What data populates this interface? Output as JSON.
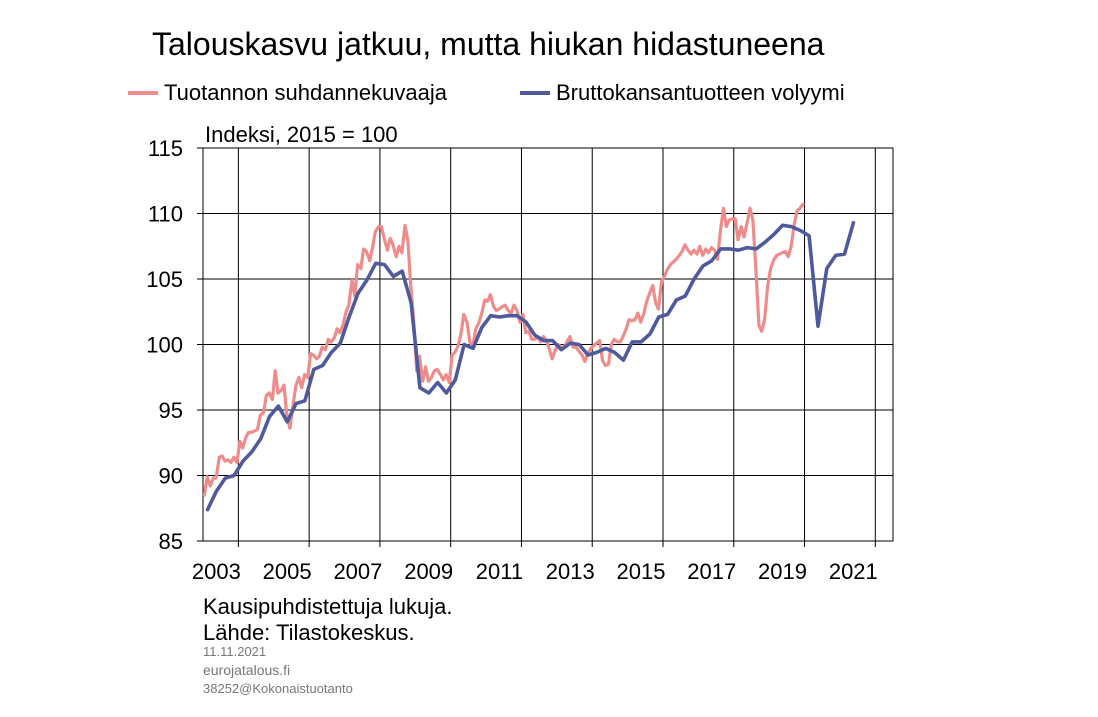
{
  "chart_data": {
    "type": "line",
    "title": "Talouskasvu jatkuu, mutta hiukan hidastuneena",
    "y_unit_label": "Indeksi, 2015 = 100",
    "xlim": [
      2002.0,
      2021.5
    ],
    "ylim": [
      85,
      115
    ],
    "y_ticks": [
      85,
      90,
      95,
      100,
      105,
      110,
      115
    ],
    "x_tick_labels": [
      "2003",
      "2005",
      "2007",
      "2009",
      "2011",
      "2013",
      "2015",
      "2017",
      "2019",
      "2021"
    ],
    "x_tick_positions": [
      2003,
      2005,
      2007,
      2009,
      2011,
      2013,
      2015,
      2017,
      2019,
      2021
    ],
    "grid": true,
    "legend_position": "top",
    "series": [
      {
        "name": "Tuotannon suhdannekuvaaja",
        "color": "#ee8c8c",
        "points": [
          [
            2002.04,
            88.5
          ],
          [
            2002.12,
            89.9
          ],
          [
            2002.21,
            89.2
          ],
          [
            2002.29,
            89.8
          ],
          [
            2002.37,
            89.8
          ],
          [
            2002.46,
            91.4
          ],
          [
            2002.54,
            91.5
          ],
          [
            2002.62,
            91.1
          ],
          [
            2002.71,
            91.2
          ],
          [
            2002.79,
            91.0
          ],
          [
            2002.87,
            91.4
          ],
          [
            2002.96,
            91.0
          ],
          [
            2003.04,
            92.6
          ],
          [
            2003.12,
            92.1
          ],
          [
            2003.21,
            92.9
          ],
          [
            2003.29,
            93.3
          ],
          [
            2003.37,
            93.3
          ],
          [
            2003.46,
            93.4
          ],
          [
            2003.54,
            93.5
          ],
          [
            2003.62,
            94.6
          ],
          [
            2003.71,
            94.8
          ],
          [
            2003.79,
            96.1
          ],
          [
            2003.87,
            96.3
          ],
          [
            2003.96,
            95.8
          ],
          [
            2004.04,
            98.0
          ],
          [
            2004.12,
            96.3
          ],
          [
            2004.21,
            96.5
          ],
          [
            2004.29,
            96.9
          ],
          [
            2004.37,
            94.5
          ],
          [
            2004.46,
            93.6
          ],
          [
            2004.54,
            95.3
          ],
          [
            2004.62,
            96.8
          ],
          [
            2004.71,
            97.5
          ],
          [
            2004.79,
            96.7
          ],
          [
            2004.87,
            97.7
          ],
          [
            2004.96,
            97.5
          ],
          [
            2005.04,
            99.3
          ],
          [
            2005.12,
            99.2
          ],
          [
            2005.21,
            98.9
          ],
          [
            2005.29,
            99.1
          ],
          [
            2005.37,
            99.8
          ],
          [
            2005.46,
            99.6
          ],
          [
            2005.54,
            100.4
          ],
          [
            2005.62,
            100.2
          ],
          [
            2005.71,
            100.5
          ],
          [
            2005.79,
            101.2
          ],
          [
            2005.87,
            100.9
          ],
          [
            2005.96,
            101.5
          ],
          [
            2006.04,
            102.5
          ],
          [
            2006.12,
            103.0
          ],
          [
            2006.21,
            104.9
          ],
          [
            2006.29,
            103.7
          ],
          [
            2006.37,
            106.1
          ],
          [
            2006.46,
            105.8
          ],
          [
            2006.54,
            107.3
          ],
          [
            2006.62,
            107.1
          ],
          [
            2006.71,
            106.4
          ],
          [
            2006.79,
            107.4
          ],
          [
            2006.87,
            108.6
          ],
          [
            2006.96,
            109.0
          ],
          [
            2007.04,
            109.0
          ],
          [
            2007.12,
            108.1
          ],
          [
            2007.21,
            107.2
          ],
          [
            2007.29,
            108.1
          ],
          [
            2007.37,
            107.6
          ],
          [
            2007.46,
            106.7
          ],
          [
            2007.54,
            107.5
          ],
          [
            2007.62,
            107.0
          ],
          [
            2007.71,
            109.1
          ],
          [
            2007.79,
            107.9
          ],
          [
            2007.87,
            104.5
          ],
          [
            2007.96,
            101.6
          ],
          [
            2008.04,
            98.0
          ],
          [
            2008.12,
            99.1
          ],
          [
            2008.21,
            97.2
          ],
          [
            2008.29,
            98.3
          ],
          [
            2008.37,
            97.2
          ],
          [
            2008.46,
            97.5
          ],
          [
            2008.54,
            98.0
          ],
          [
            2008.62,
            98.1
          ],
          [
            2008.71,
            97.7
          ],
          [
            2008.79,
            97.3
          ],
          [
            2008.87,
            97.7
          ],
          [
            2008.96,
            97.1
          ],
          [
            2009.04,
            99.2
          ],
          [
            2009.12,
            99.4
          ],
          [
            2009.21,
            99.9
          ],
          [
            2009.29,
            100.8
          ],
          [
            2009.37,
            102.3
          ],
          [
            2009.46,
            101.7
          ],
          [
            2009.54,
            100.2
          ],
          [
            2009.62,
            99.8
          ],
          [
            2009.71,
            101.2
          ],
          [
            2009.79,
            101.6
          ],
          [
            2009.87,
            102.3
          ],
          [
            2009.96,
            103.4
          ],
          [
            2010.04,
            103.3
          ],
          [
            2010.12,
            103.8
          ],
          [
            2010.21,
            102.9
          ],
          [
            2010.29,
            102.6
          ],
          [
            2010.37,
            102.7
          ],
          [
            2010.46,
            102.9
          ],
          [
            2010.54,
            103.0
          ],
          [
            2010.62,
            102.6
          ],
          [
            2010.71,
            102.4
          ],
          [
            2010.79,
            103.0
          ],
          [
            2010.87,
            102.6
          ],
          [
            2010.96,
            101.7
          ],
          [
            2011.04,
            102.3
          ],
          [
            2011.12,
            100.9
          ],
          [
            2011.21,
            101.0
          ],
          [
            2011.29,
            100.4
          ],
          [
            2011.37,
            100.4
          ],
          [
            2011.46,
            100.6
          ],
          [
            2011.54,
            100.2
          ],
          [
            2011.62,
            100.6
          ],
          [
            2011.71,
            100.3
          ],
          [
            2011.79,
            99.6
          ],
          [
            2011.87,
            98.9
          ],
          [
            2011.96,
            99.6
          ],
          [
            2012.04,
            100.0
          ],
          [
            2012.12,
            99.8
          ],
          [
            2012.21,
            99.8
          ],
          [
            2012.29,
            100.2
          ],
          [
            2012.37,
            100.6
          ],
          [
            2012.46,
            99.8
          ],
          [
            2012.54,
            99.8
          ],
          [
            2012.62,
            99.5
          ],
          [
            2012.71,
            99.2
          ],
          [
            2012.79,
            98.7
          ],
          [
            2012.87,
            99.3
          ],
          [
            2012.96,
            99.7
          ],
          [
            2013.04,
            99.9
          ],
          [
            2013.12,
            100.1
          ],
          [
            2013.21,
            100.3
          ],
          [
            2013.29,
            98.8
          ],
          [
            2013.37,
            98.4
          ],
          [
            2013.46,
            98.5
          ],
          [
            2013.54,
            100.0
          ],
          [
            2013.62,
            100.4
          ],
          [
            2013.71,
            100.2
          ],
          [
            2013.79,
            100.2
          ],
          [
            2013.87,
            100.6
          ],
          [
            2013.96,
            101.2
          ],
          [
            2014.04,
            101.9
          ],
          [
            2014.12,
            101.8
          ],
          [
            2014.21,
            101.9
          ],
          [
            2014.29,
            102.4
          ],
          [
            2014.37,
            101.7
          ],
          [
            2014.46,
            102.4
          ],
          [
            2014.54,
            103.3
          ],
          [
            2014.62,
            103.9
          ],
          [
            2014.71,
            104.5
          ],
          [
            2014.79,
            103.2
          ],
          [
            2014.87,
            102.7
          ],
          [
            2014.96,
            104.8
          ],
          [
            2015.04,
            105.2
          ],
          [
            2015.12,
            105.7
          ],
          [
            2015.21,
            106.1
          ],
          [
            2015.29,
            106.3
          ],
          [
            2015.37,
            106.5
          ],
          [
            2015.46,
            106.8
          ],
          [
            2015.54,
            107.1
          ],
          [
            2015.62,
            107.6
          ],
          [
            2015.71,
            107.2
          ],
          [
            2015.79,
            106.9
          ],
          [
            2015.87,
            107.2
          ],
          [
            2015.96,
            106.9
          ],
          [
            2016.04,
            107.5
          ],
          [
            2016.12,
            106.8
          ],
          [
            2016.21,
            107.3
          ],
          [
            2016.29,
            107.0
          ],
          [
            2016.37,
            107.4
          ],
          [
            2016.46,
            107.2
          ],
          [
            2016.54,
            106.5
          ],
          [
            2016.62,
            108.6
          ],
          [
            2016.71,
            110.4
          ],
          [
            2016.79,
            109.0
          ],
          [
            2016.87,
            109.5
          ],
          [
            2016.96,
            109.6
          ],
          [
            2017.04,
            109.6
          ],
          [
            2017.12,
            108.0
          ],
          [
            2017.21,
            109.0
          ],
          [
            2017.29,
            108.2
          ],
          [
            2017.37,
            109.2
          ],
          [
            2017.46,
            110.4
          ],
          [
            2017.54,
            109.5
          ],
          [
            2017.62,
            106.0
          ],
          [
            2017.71,
            101.5
          ],
          [
            2017.79,
            101.0
          ],
          [
            2017.87,
            101.9
          ],
          [
            2017.96,
            104.5
          ],
          [
            2018.04,
            105.8
          ],
          [
            2018.12,
            106.4
          ],
          [
            2018.21,
            106.8
          ],
          [
            2018.29,
            106.9
          ],
          [
            2018.37,
            107.0
          ],
          [
            2018.46,
            107.1
          ],
          [
            2018.54,
            106.7
          ],
          [
            2018.62,
            107.5
          ],
          [
            2018.71,
            109.2
          ],
          [
            2018.79,
            110.2
          ],
          [
            2018.87,
            110.4
          ],
          [
            2018.96,
            110.7
          ]
        ]
      },
      {
        "name": "Bruttokansantuotteen volyymi",
        "color": "#4f5a9c",
        "points": [
          [
            2002.13,
            87.4
          ],
          [
            2002.38,
            88.8
          ],
          [
            2002.63,
            89.8
          ],
          [
            2002.88,
            90.0
          ],
          [
            2003.13,
            91.1
          ],
          [
            2003.38,
            91.8
          ],
          [
            2003.63,
            92.8
          ],
          [
            2003.88,
            94.5
          ],
          [
            2004.13,
            95.3
          ],
          [
            2004.38,
            94.1
          ],
          [
            2004.63,
            95.5
          ],
          [
            2004.88,
            95.7
          ],
          [
            2005.13,
            98.1
          ],
          [
            2005.38,
            98.4
          ],
          [
            2005.63,
            99.4
          ],
          [
            2005.88,
            100.1
          ],
          [
            2006.13,
            102.1
          ],
          [
            2006.38,
            103.9
          ],
          [
            2006.63,
            104.9
          ],
          [
            2006.88,
            106.2
          ],
          [
            2007.13,
            106.1
          ],
          [
            2007.38,
            105.2
          ],
          [
            2007.63,
            105.6
          ],
          [
            2007.88,
            103.2
          ],
          [
            2008.13,
            96.7
          ],
          [
            2008.38,
            96.3
          ],
          [
            2008.63,
            97.1
          ],
          [
            2008.88,
            96.3
          ],
          [
            2009.13,
            97.3
          ],
          [
            2009.38,
            100.0
          ],
          [
            2009.63,
            99.7
          ],
          [
            2009.88,
            101.3
          ],
          [
            2010.13,
            102.2
          ],
          [
            2010.38,
            102.1
          ],
          [
            2010.63,
            102.2
          ],
          [
            2010.88,
            102.2
          ],
          [
            2011.13,
            101.7
          ],
          [
            2011.38,
            100.7
          ],
          [
            2011.63,
            100.3
          ],
          [
            2011.88,
            100.3
          ],
          [
            2012.13,
            99.6
          ],
          [
            2012.38,
            100.1
          ],
          [
            2012.63,
            100.0
          ],
          [
            2012.88,
            99.2
          ],
          [
            2013.13,
            99.4
          ],
          [
            2013.38,
            99.7
          ],
          [
            2013.63,
            99.4
          ],
          [
            2013.88,
            98.8
          ],
          [
            2014.13,
            100.2
          ],
          [
            2014.38,
            100.2
          ],
          [
            2014.63,
            100.8
          ],
          [
            2014.88,
            102.1
          ],
          [
            2015.13,
            102.3
          ],
          [
            2015.38,
            103.4
          ],
          [
            2015.63,
            103.7
          ],
          [
            2015.88,
            105.0
          ],
          [
            2016.13,
            106.0
          ],
          [
            2016.38,
            106.4
          ],
          [
            2016.63,
            107.3
          ],
          [
            2016.88,
            107.3
          ],
          [
            2017.13,
            107.2
          ],
          [
            2017.38,
            107.4
          ],
          [
            2017.63,
            107.3
          ],
          [
            2017.88,
            107.8
          ],
          [
            2018.13,
            108.4
          ],
          [
            2018.38,
            109.1
          ],
          [
            2018.63,
            109.0
          ],
          [
            2018.88,
            108.7
          ],
          [
            2019.13,
            108.3
          ],
          [
            2019.38,
            101.4
          ],
          [
            2019.63,
            105.8
          ],
          [
            2019.88,
            106.8
          ],
          [
            2020.13,
            106.9
          ],
          [
            2020.38,
            109.3
          ]
        ]
      }
    ]
  },
  "notes": {
    "line1": "Kausipuhdistettuja lukuja.",
    "line2": "Lähde: Tilastokeskus."
  },
  "meta": {
    "date": "11.11.2021",
    "site": "eurojatalous.fi",
    "id": "38252@Kokonaistuotanto"
  }
}
